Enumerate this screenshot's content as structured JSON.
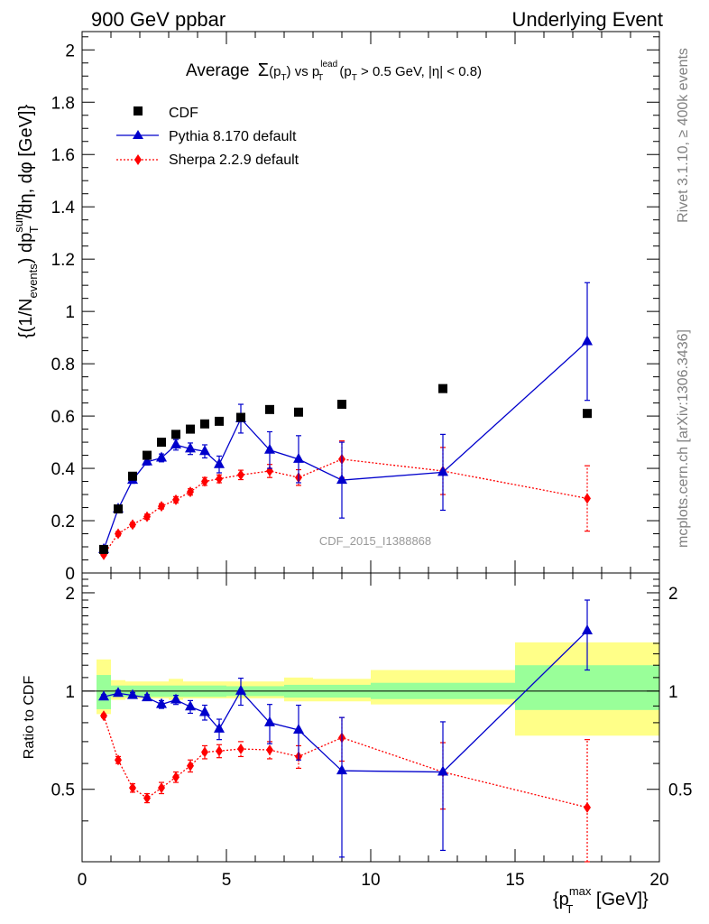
{
  "header": {
    "left": "900 GeV ppbar",
    "right": "Underlying Event"
  },
  "title": {
    "main": "Average",
    "sigma": "Σ",
    "pt_open": "(p",
    "pt_sub": "T",
    "pt_close": ")",
    "vs": " vs p",
    "lead_sup": "lead",
    "lead_sub": "T",
    "cut_open": " (p",
    "cut_sub": "T",
    "cut_rest": " > 0.5 GeV, |η| < 0.8)"
  },
  "side_labels": {
    "rivet": "Rivet 3.1.10, ≥ 400k events",
    "mcplots": "mcplots.cern.ch [arXiv:1306.3436]"
  },
  "watermark": "CDF_2015_I1388868",
  "axes": {
    "ylabel_main": "{(1/N",
    "ylabel_main_sub": "events",
    "ylabel_main_rest": ") dp",
    "ylabel_sum_sup": "sum",
    "ylabel_sum_sub": "T",
    "ylabel_tail": "/dη, dφ [GeV]}",
    "ylabel_ratio": "Ratio to CDF",
    "xlabel_open": "{p",
    "xlabel_sup": "max",
    "xlabel_sub": "T",
    "xlabel_rest": " [GeV]}"
  },
  "legend": {
    "cdf": "CDF",
    "pythia": "Pythia 8.170 default",
    "sherpa": "Sherpa 2.2.9 default"
  },
  "colors": {
    "cdf": "#000000",
    "pythia": "#0000cc",
    "sherpa": "#ff0000",
    "band_inner": "#99ff99",
    "band_outer": "#ffff88"
  },
  "chart_data": {
    "type": "scatter",
    "x": [
      0.75,
      1.25,
      1.75,
      2.25,
      2.75,
      3.25,
      3.75,
      4.25,
      4.75,
      5.5,
      6.5,
      7.5,
      9.0,
      12.5,
      17.5
    ],
    "x_edges": [
      0.5,
      1.0,
      1.5,
      2.0,
      2.5,
      3.0,
      3.5,
      4.0,
      4.5,
      5.0,
      6.0,
      7.0,
      8.0,
      10.0,
      15.0,
      20.0
    ],
    "xlim": [
      0,
      20
    ],
    "main_ylim": [
      0,
      2.07
    ],
    "main_yticks": [
      0,
      0.2,
      0.4,
      0.6,
      0.8,
      1,
      1.2,
      1.4,
      1.6,
      1.8,
      2
    ],
    "main_ytick_labels": [
      "0",
      "0.2",
      "0.4",
      "0.6",
      "0.8",
      "1",
      "1.2",
      "1.4",
      "1.6",
      "1.8",
      "2"
    ],
    "ratio_ylim": [
      0.3,
      2.3
    ],
    "ratio_yticks": [
      0.5,
      1,
      2
    ],
    "ratio_ytick_labels": [
      "0.5",
      "1",
      "2"
    ],
    "xticks": [
      0,
      5,
      10,
      15,
      20
    ],
    "xtick_labels": [
      "0",
      "5",
      "10",
      "15",
      "20"
    ],
    "series": [
      {
        "name": "CDF",
        "key": "cdf",
        "values": [
          0.09,
          0.245,
          0.37,
          0.45,
          0.5,
          0.53,
          0.55,
          0.57,
          0.58,
          0.595,
          0.625,
          0.615,
          0.645,
          0.705,
          0.61
        ]
      },
      {
        "name": "Pythia 8.170 default",
        "key": "pythia",
        "values": [
          0.09,
          0.245,
          0.355,
          0.425,
          0.44,
          0.49,
          0.475,
          0.465,
          0.415,
          0.59,
          0.47,
          0.435,
          0.355,
          0.385,
          0.885
        ],
        "errors": [
          0.008,
          0.01,
          0.012,
          0.012,
          0.015,
          0.02,
          0.022,
          0.025,
          0.032,
          0.055,
          0.07,
          0.09,
          0.145,
          0.145,
          0.225
        ],
        "ratio": [
          0.96,
          0.985,
          0.97,
          0.955,
          0.91,
          0.94,
          0.895,
          0.86,
          0.765,
          1.0,
          0.8,
          0.76,
          0.57,
          0.565,
          1.53
        ],
        "ratio_errors": [
          0.015,
          0.02,
          0.02,
          0.02,
          0.025,
          0.03,
          0.04,
          0.045,
          0.055,
          0.095,
          0.11,
          0.145,
          0.26,
          0.24,
          0.37
        ]
      },
      {
        "name": "Sherpa 2.2.9 default",
        "key": "sherpa",
        "values": [
          0.07,
          0.15,
          0.185,
          0.215,
          0.255,
          0.28,
          0.31,
          0.35,
          0.36,
          0.375,
          0.39,
          0.365,
          0.435,
          0.39,
          0.285
        ],
        "errors": [
          0.005,
          0.008,
          0.008,
          0.01,
          0.01,
          0.012,
          0.012,
          0.015,
          0.015,
          0.018,
          0.025,
          0.03,
          0.07,
          0.09,
          0.125
        ],
        "ratio": [
          0.84,
          0.615,
          0.505,
          0.47,
          0.505,
          0.545,
          0.59,
          0.65,
          0.655,
          0.665,
          0.66,
          0.63,
          0.72,
          0.565,
          0.44
        ],
        "ratio_errors": [
          0.01,
          0.015,
          0.015,
          0.015,
          0.02,
          0.02,
          0.025,
          0.03,
          0.03,
          0.035,
          0.04,
          0.05,
          0.11,
          0.13,
          0.27
        ]
      }
    ],
    "ratio_band": {
      "inner_lo": [
        0.88,
        0.96,
        0.96,
        0.96,
        0.96,
        0.96,
        0.96,
        0.96,
        0.96,
        0.965,
        0.965,
        0.955,
        0.955,
        0.945,
        0.875
      ],
      "inner_hi": [
        1.12,
        1.04,
        1.04,
        1.04,
        1.04,
        1.04,
        1.04,
        1.04,
        1.04,
        1.035,
        1.035,
        1.045,
        1.045,
        1.06,
        1.2
      ],
      "outer_lo": [
        0.85,
        0.94,
        0.95,
        0.95,
        0.95,
        0.94,
        0.95,
        0.95,
        0.95,
        0.95,
        0.95,
        0.93,
        0.93,
        0.91,
        0.73
      ],
      "outer_hi": [
        1.25,
        1.08,
        1.07,
        1.07,
        1.07,
        1.09,
        1.07,
        1.07,
        1.07,
        1.07,
        1.07,
        1.1,
        1.09,
        1.16,
        1.41
      ]
    },
    "grid": false,
    "legend_position": "top-left"
  }
}
